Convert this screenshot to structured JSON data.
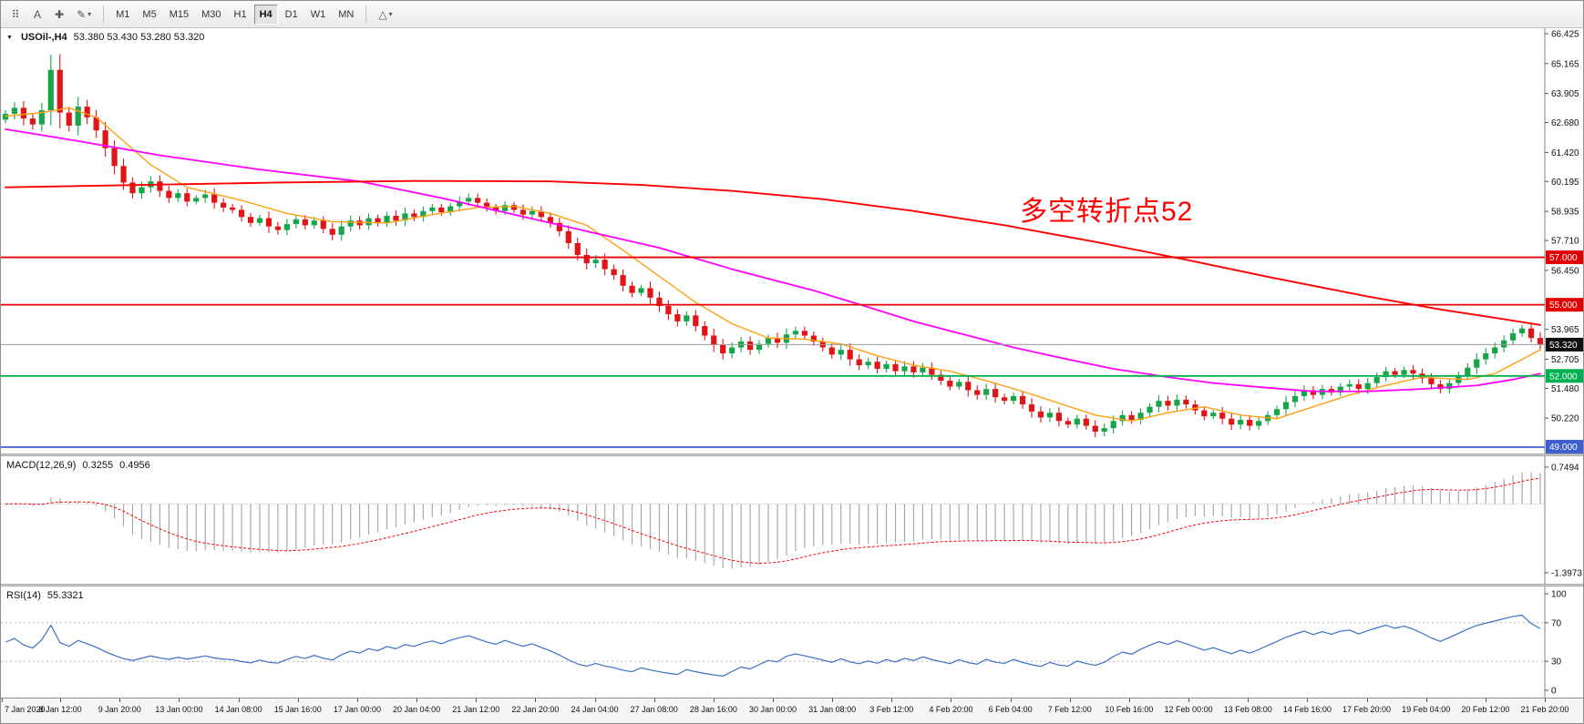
{
  "toolbar": {
    "tools": [
      {
        "name": "grid-icon",
        "glyph": "⠿"
      },
      {
        "name": "text-tool",
        "glyph": "A"
      },
      {
        "name": "crosshair-tool",
        "glyph": "✚"
      },
      {
        "name": "draw-tool",
        "glyph": "✎",
        "caret": "▾"
      }
    ],
    "timeframes": [
      "M1",
      "M5",
      "M15",
      "M30",
      "H1",
      "H4",
      "D1",
      "W1",
      "MN"
    ],
    "active_timeframe": "H4",
    "objects_tool": {
      "name": "indicators-dropdown",
      "glyph": "△",
      "caret": "▾"
    }
  },
  "chart": {
    "symbol_label": "USOil-,H4",
    "ohlc_text": "53.380 53.430 53.280 53.320",
    "annotation": "多空转折点52",
    "annotation_color": "#ff0000",
    "levels": [
      {
        "label": "57.000",
        "value": 57.0,
        "color": "#e00000"
      },
      {
        "label": "55.000",
        "value": 55.0,
        "color": "#e00000"
      },
      {
        "label": "52.000",
        "value": 52.0,
        "color": "#00b050"
      },
      {
        "label": "49.000",
        "value": 49.0,
        "color": "#3f5fd0"
      }
    ],
    "current_price": {
      "label": "53.320",
      "value": 53.32,
      "badge": "#101010",
      "line": "#9a9a9a"
    },
    "colors": {
      "up": "#17a54a",
      "down": "#e01515",
      "ma_fast": "#ffa012",
      "ma_mid": "#ff00ff",
      "ma_slow": "#ff0000"
    }
  },
  "macd_panel": {
    "title": "MACD(12,26,9)",
    "value_main": "0.3255",
    "value_signal": "0.4956",
    "histogram_color": "#a9a9a9",
    "signal_color": "#ff0000"
  },
  "rsi_panel": {
    "title": "RSI(14)",
    "value": "55.3321",
    "line_color": "#3b6fc9"
  },
  "chart_data": {
    "type": "candlestick",
    "symbol": "USOil-",
    "timeframe": "H4",
    "title": "USOil- H4 candlestick chart with MA(fast/mid/slow), MACD(12,26,9) and RSI(14)",
    "price_axis": {
      "min": 48.73,
      "max": 66.655
    },
    "price_ticks": [
      "66.425",
      "65.165",
      "63.905",
      "62.680",
      "61.420",
      "60.195",
      "58.935",
      "57.710",
      "56.450",
      "53.965",
      "52.705",
      "51.480",
      "50.220"
    ],
    "first_open": 62.8,
    "closes": [
      63.05,
      63.3,
      62.85,
      62.6,
      63.2,
      64.9,
      63.1,
      62.55,
      63.35,
      62.9,
      62.35,
      61.6,
      60.85,
      60.15,
      59.7,
      59.95,
      60.2,
      59.8,
      59.5,
      59.7,
      59.35,
      59.5,
      59.65,
      59.3,
      59.1,
      59.0,
      58.7,
      58.45,
      58.65,
      58.3,
      58.15,
      58.4,
      58.6,
      58.35,
      58.55,
      58.2,
      57.95,
      58.3,
      58.55,
      58.35,
      58.65,
      58.45,
      58.75,
      58.55,
      58.85,
      58.7,
      58.95,
      59.1,
      58.9,
      59.15,
      59.35,
      59.5,
      59.3,
      59.1,
      58.95,
      59.2,
      59.0,
      58.8,
      58.95,
      58.7,
      58.45,
      58.1,
      57.6,
      57.1,
      56.75,
      56.9,
      56.5,
      56.25,
      55.8,
      55.5,
      55.7,
      55.3,
      54.95,
      54.6,
      54.3,
      54.55,
      54.1,
      53.7,
      53.3,
      52.95,
      53.2,
      53.45,
      53.1,
      53.35,
      53.6,
      53.4,
      53.75,
      53.9,
      53.7,
      53.45,
      53.2,
      52.9,
      53.1,
      52.7,
      52.45,
      52.6,
      52.3,
      52.5,
      52.2,
      52.4,
      52.15,
      52.35,
      52.05,
      51.8,
      51.55,
      51.75,
      51.4,
      51.2,
      51.45,
      51.1,
      50.95,
      51.15,
      50.8,
      50.5,
      50.25,
      50.45,
      50.1,
      49.95,
      50.2,
      49.9,
      49.65,
      49.8,
      50.1,
      50.35,
      50.15,
      50.45,
      50.7,
      50.95,
      50.75,
      51.0,
      50.8,
      50.55,
      50.3,
      50.45,
      50.2,
      49.95,
      50.15,
      49.9,
      50.1,
      50.35,
      50.6,
      50.9,
      51.15,
      51.4,
      51.2,
      51.45,
      51.3,
      51.55,
      51.65,
      51.45,
      51.7,
      51.95,
      52.2,
      52.05,
      52.25,
      52.1,
      51.9,
      51.65,
      51.45,
      51.7,
      52.0,
      52.35,
      52.7,
      52.95,
      53.2,
      53.5,
      53.8,
      54.0,
      53.6,
      53.32
    ],
    "ma_fast_anchors": [
      [
        0,
        62.95
      ],
      [
        4,
        63.1
      ],
      [
        7,
        63.3
      ],
      [
        10,
        62.9
      ],
      [
        13,
        61.9
      ],
      [
        16,
        60.9
      ],
      [
        20,
        59.95
      ],
      [
        26,
        59.4
      ],
      [
        31,
        58.85
      ],
      [
        36,
        58.5
      ],
      [
        42,
        58.45
      ],
      [
        47,
        58.8
      ],
      [
        52,
        59.1
      ],
      [
        56,
        59.15
      ],
      [
        60,
        58.85
      ],
      [
        64,
        58.35
      ],
      [
        68,
        57.3
      ],
      [
        72,
        56.2
      ],
      [
        76,
        55.1
      ],
      [
        80,
        54.2
      ],
      [
        84,
        53.6
      ],
      [
        88,
        53.55
      ],
      [
        92,
        53.35
      ],
      [
        96,
        52.85
      ],
      [
        100,
        52.45
      ],
      [
        104,
        52.2
      ],
      [
        108,
        51.8
      ],
      [
        112,
        51.35
      ],
      [
        116,
        50.85
      ],
      [
        120,
        50.35
      ],
      [
        124,
        50.1
      ],
      [
        128,
        50.45
      ],
      [
        132,
        50.7
      ],
      [
        136,
        50.35
      ],
      [
        140,
        50.2
      ],
      [
        144,
        50.7
      ],
      [
        148,
        51.2
      ],
      [
        152,
        51.6
      ],
      [
        156,
        51.95
      ],
      [
        158,
        51.9
      ],
      [
        161,
        51.85
      ],
      [
        164,
        52.1
      ],
      [
        167,
        52.7
      ],
      [
        169,
        53.1
      ]
    ],
    "ma_mid_anchors": [
      [
        0,
        62.4
      ],
      [
        8,
        61.9
      ],
      [
        17,
        61.3
      ],
      [
        28,
        60.7
      ],
      [
        39,
        60.2
      ],
      [
        48,
        59.5
      ],
      [
        56,
        58.8
      ],
      [
        64,
        58.1
      ],
      [
        72,
        57.4
      ],
      [
        80,
        56.5
      ],
      [
        89,
        55.6
      ],
      [
        95,
        54.9
      ],
      [
        100,
        54.3
      ],
      [
        106,
        53.7
      ],
      [
        111,
        53.2
      ],
      [
        117,
        52.7
      ],
      [
        122,
        52.3
      ],
      [
        128,
        51.95
      ],
      [
        133,
        51.7
      ],
      [
        139,
        51.5
      ],
      [
        144,
        51.35
      ],
      [
        150,
        51.35
      ],
      [
        156,
        51.45
      ],
      [
        162,
        51.6
      ],
      [
        166,
        51.85
      ],
      [
        169,
        52.1
      ]
    ],
    "ma_slow_anchors": [
      [
        0,
        59.95
      ],
      [
        15,
        60.05
      ],
      [
        30,
        60.15
      ],
      [
        45,
        60.22
      ],
      [
        60,
        60.2
      ],
      [
        70,
        60.05
      ],
      [
        80,
        59.8
      ],
      [
        90,
        59.45
      ],
      [
        100,
        58.95
      ],
      [
        110,
        58.35
      ],
      [
        120,
        57.65
      ],
      [
        130,
        56.9
      ],
      [
        140,
        56.1
      ],
      [
        150,
        55.35
      ],
      [
        158,
        54.8
      ],
      [
        164,
        54.45
      ],
      [
        169,
        54.15
      ]
    ],
    "macd": {
      "fast": 12,
      "slow": 26,
      "signal": 9,
      "display_main": 0.3255,
      "display_signal": 0.4956,
      "axis_labels": [
        "0.7494",
        "-1.3973"
      ],
      "axis_values": [
        0.7494,
        -1.3973
      ]
    },
    "rsi": {
      "period": 14,
      "display": 55.3321,
      "axis_labels": [
        "100",
        "70",
        "30",
        "0"
      ],
      "axis_values": [
        100,
        70,
        30,
        0
      ],
      "level_lines": [
        70,
        30
      ]
    },
    "time_labels": [
      "7 Jan 2020",
      "8 Jan 12:00",
      "9 Jan 20:00",
      "13 Jan 00:00",
      "14 Jan 08:00",
      "15 Jan 16:00",
      "17 Jan 00:00",
      "20 Jan 04:00",
      "21 Jan 12:00",
      "22 Jan 20:00",
      "24 Jan 04:00",
      "27 Jan 08:00",
      "28 Jan 16:00",
      "30 Jan 00:00",
      "31 Jan 08:00",
      "3 Feb 12:00",
      "4 Feb 20:00",
      "6 Feb 04:00",
      "7 Feb 12:00",
      "10 Feb 16:00",
      "12 Feb 00:00",
      "13 Feb 08:00",
      "14 Feb 16:00",
      "17 Feb 20:00",
      "19 Feb 04:00",
      "20 Feb 12:00",
      "21 Feb 20:00"
    ]
  }
}
